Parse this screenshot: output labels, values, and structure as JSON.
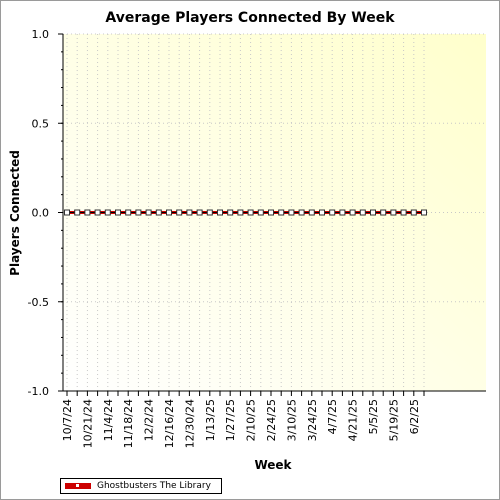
{
  "chart_data": {
    "type": "line",
    "title": "Average Players Connected By Week",
    "xlabel": "Week",
    "ylabel": "Players Connected",
    "ylim": [
      -1.0,
      1.0
    ],
    "y_ticks": [
      "1.0",
      "0.5",
      "0.0",
      "-0.5",
      "-1.0"
    ],
    "x_tick_labels": [
      "10/7/24",
      "10/21/24",
      "11/4/24",
      "11/18/24",
      "12/2/24",
      "12/16/24",
      "12/30/24",
      "1/13/25",
      "1/27/25",
      "2/10/25",
      "2/24/25",
      "3/10/25",
      "3/24/25",
      "4/7/25",
      "4/21/25",
      "5/5/25",
      "5/19/25",
      "6/2/25"
    ],
    "x": [
      "10/7/24",
      "10/14/24",
      "10/21/24",
      "10/28/24",
      "11/4/24",
      "11/11/24",
      "11/18/24",
      "11/25/24",
      "12/2/24",
      "12/9/24",
      "12/16/24",
      "12/23/24",
      "12/30/24",
      "1/6/25",
      "1/13/25",
      "1/20/25",
      "1/27/25",
      "2/3/25",
      "2/10/25",
      "2/17/25",
      "2/24/25",
      "3/3/25",
      "3/10/25",
      "3/17/25",
      "3/24/25",
      "3/31/25",
      "4/7/25",
      "4/14/25",
      "4/21/25",
      "4/28/25",
      "5/5/25",
      "5/12/25",
      "5/19/25",
      "5/26/25",
      "6/2/25",
      "6/9/25"
    ],
    "series": [
      {
        "name": "Ghostbusters The Library",
        "color": "#cc0000",
        "values": [
          0,
          0,
          0,
          0,
          0,
          0,
          0,
          0,
          0,
          0,
          0,
          0,
          0,
          0,
          0,
          0,
          0,
          0,
          0,
          0,
          0,
          0,
          0,
          0,
          0,
          0,
          0,
          0,
          0,
          0,
          0,
          0,
          0,
          0,
          0,
          0
        ]
      }
    ],
    "grid": true,
    "legend_position": "bottom-left",
    "background": "light-yellow gradient"
  }
}
